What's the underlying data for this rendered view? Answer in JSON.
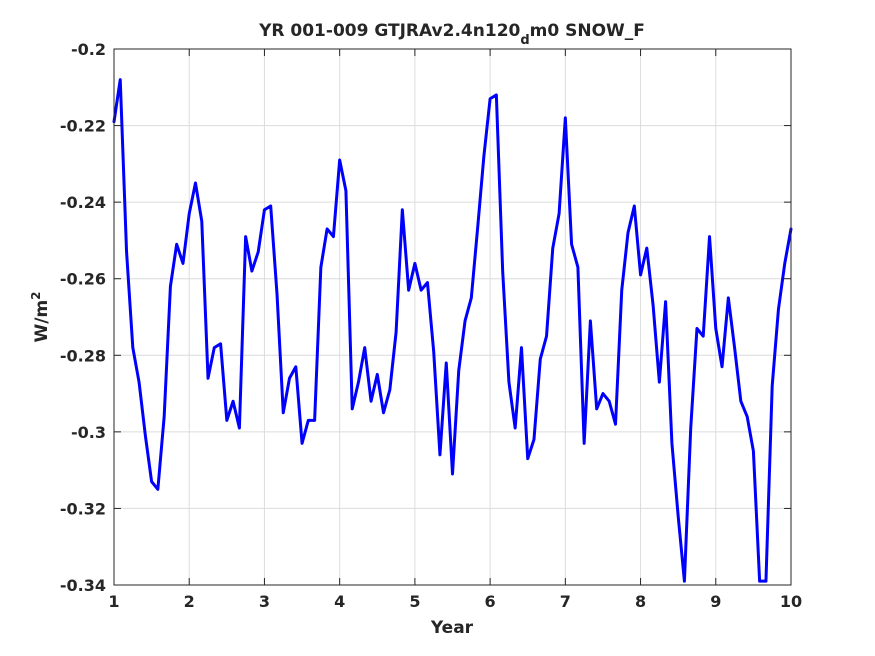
{
  "chart_data": {
    "type": "line",
    "title": {
      "prefix": "YR 001-009 GTJRAv2.4n120",
      "subscript": "d",
      "suffix": "m0 SNOW_F"
    },
    "xlabel": "Year",
    "ylabel": {
      "base": "W/m",
      "superscript": "2"
    },
    "xlim": [
      1,
      10
    ],
    "ylim": [
      -0.34,
      -0.2
    ],
    "x_ticks": [
      1,
      2,
      3,
      4,
      5,
      6,
      7,
      8,
      9,
      10
    ],
    "x_tick_labels": [
      "1",
      "2",
      "3",
      "4",
      "5",
      "6",
      "7",
      "8",
      "9",
      "10"
    ],
    "y_ticks": [
      -0.34,
      -0.32,
      -0.3,
      -0.28,
      -0.26,
      -0.24,
      -0.22,
      -0.2
    ],
    "y_tick_labels": [
      "-0.34",
      "-0.32",
      "-0.3",
      "-0.28",
      "-0.26",
      "-0.24",
      "-0.22",
      "-0.2"
    ],
    "grid": true,
    "line_color": "#0000ff",
    "series": [
      {
        "x": [
          1.0,
          1.083,
          1.167,
          1.25,
          1.333,
          1.417,
          1.5,
          1.583,
          1.667,
          1.75,
          1.833,
          1.917,
          2.0,
          2.083,
          2.167,
          2.25,
          2.333,
          2.417,
          2.5,
          2.583,
          2.667,
          2.75,
          2.833,
          2.917,
          3.0,
          3.083,
          3.167,
          3.25,
          3.333,
          3.417,
          3.5,
          3.583,
          3.667,
          3.75,
          3.833,
          3.917,
          4.0,
          4.083,
          4.167,
          4.25,
          4.333,
          4.417,
          4.5,
          4.583,
          4.667,
          4.75,
          4.833,
          4.917,
          5.0,
          5.083,
          5.167,
          5.25,
          5.333,
          5.417,
          5.5,
          5.583,
          5.667,
          5.75,
          5.833,
          5.917,
          6.0,
          6.083,
          6.167,
          6.25,
          6.333,
          6.417,
          6.5,
          6.583,
          6.667,
          6.75,
          6.833,
          6.917,
          7.0,
          7.083,
          7.167,
          7.25,
          7.333,
          7.417,
          7.5,
          7.583,
          7.667,
          7.75,
          7.833,
          7.917,
          8.0,
          8.083,
          8.167,
          8.25,
          8.333,
          8.417,
          8.5,
          8.583,
          8.667,
          8.75,
          8.833,
          8.917,
          9.0,
          9.083,
          9.167,
          9.25,
          9.333,
          9.417,
          9.5,
          9.583,
          9.667,
          9.75,
          9.833,
          9.917,
          10.0
        ],
        "y": [
          -0.219,
          -0.208,
          -0.253,
          -0.278,
          -0.287,
          -0.301,
          -0.313,
          -0.315,
          -0.296,
          -0.262,
          -0.251,
          -0.256,
          -0.243,
          -0.235,
          -0.245,
          -0.286,
          -0.278,
          -0.277,
          -0.297,
          -0.292,
          -0.299,
          -0.249,
          -0.258,
          -0.253,
          -0.242,
          -0.241,
          -0.264,
          -0.295,
          -0.286,
          -0.283,
          -0.303,
          -0.297,
          -0.297,
          -0.257,
          -0.247,
          -0.249,
          -0.229,
          -0.237,
          -0.294,
          -0.287,
          -0.278,
          -0.292,
          -0.285,
          -0.295,
          -0.289,
          -0.274,
          -0.242,
          -0.263,
          -0.256,
          -0.263,
          -0.261,
          -0.279,
          -0.306,
          -0.282,
          -0.311,
          -0.284,
          -0.271,
          -0.265,
          -0.247,
          -0.228,
          -0.213,
          -0.212,
          -0.258,
          -0.287,
          -0.299,
          -0.278,
          -0.307,
          -0.302,
          -0.281,
          -0.275,
          -0.252,
          -0.243,
          -0.218,
          -0.251,
          -0.257,
          -0.303,
          -0.271,
          -0.294,
          -0.29,
          -0.292,
          -0.298,
          -0.263,
          -0.248,
          -0.241,
          -0.259,
          -0.252,
          -0.267,
          -0.287,
          -0.266,
          -0.303,
          -0.322,
          -0.339,
          -0.299,
          -0.273,
          -0.275,
          -0.249,
          -0.273,
          -0.283,
          -0.265,
          -0.278,
          -0.292,
          -0.296,
          -0.305,
          -0.339,
          -0.339,
          -0.288,
          -0.268,
          -0.256,
          -0.247
        ]
      }
    ]
  }
}
